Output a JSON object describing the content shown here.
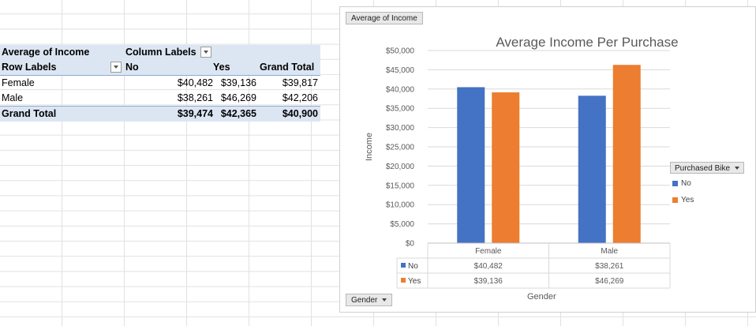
{
  "pivot": {
    "title": "Average of Income",
    "column_labels": "Column Labels",
    "row_labels": "Row Labels",
    "col_no": "No",
    "col_yes": "Yes",
    "col_grand_total": "Grand Total",
    "rows": [
      {
        "label": "Female",
        "no": "$40,482",
        "yes": "$39,136",
        "total": "$39,817"
      },
      {
        "label": "Male",
        "no": "$38,261",
        "yes": "$46,269",
        "total": "$42,206"
      }
    ],
    "grand_total": {
      "label": "Grand Total",
      "no": "$39,474",
      "yes": "$42,365",
      "total": "$40,900"
    }
  },
  "chart_buttons": {
    "value_field": "Average of Income",
    "axis_field": "Gender",
    "legend_field": "Purchased Bike"
  },
  "chart_data": {
    "type": "bar",
    "title": "Average Income Per Purchase",
    "xlabel": "Gender",
    "ylabel": "Income",
    "categories": [
      "Female",
      "Male"
    ],
    "series": [
      {
        "name": "No",
        "values": [
          40482,
          38261
        ],
        "labels": [
          "$40,482",
          "$38,261"
        ],
        "color": "#4472c4"
      },
      {
        "name": "Yes",
        "values": [
          39136,
          46269
        ],
        "labels": [
          "$39,136",
          "$46,269"
        ],
        "color": "#ed7d31"
      }
    ],
    "ylim": [
      0,
      50000
    ],
    "yticks": [
      "$0",
      "$5,000",
      "$10,000",
      "$15,000",
      "$20,000",
      "$25,000",
      "$30,000",
      "$35,000",
      "$40,000",
      "$45,000",
      "$50,000"
    ],
    "grid": true,
    "legend_position": "right",
    "data_table": true
  }
}
